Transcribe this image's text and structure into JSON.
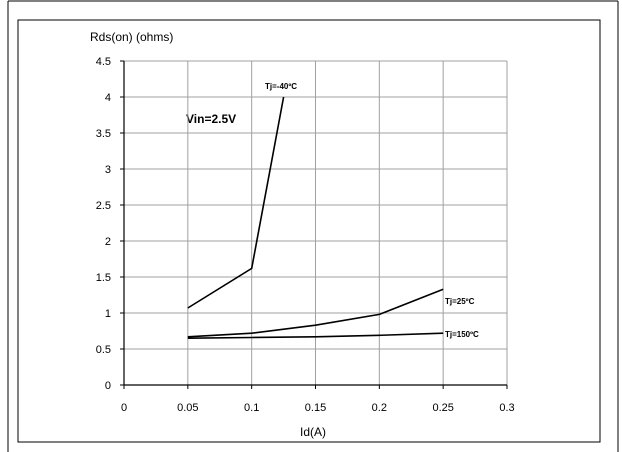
{
  "chart_data": {
    "type": "line",
    "title": "",
    "ylabel": "Rds(on) (ohms)",
    "xlabel": "Id(A)",
    "annotation": "Vin=2.5V",
    "xlim": [
      0,
      0.3
    ],
    "ylim": [
      0,
      4.5
    ],
    "grid": true,
    "x_ticks": [
      "0",
      "0.05",
      "0.1",
      "0.15",
      "0.2",
      "0.25",
      "0.3"
    ],
    "y_ticks": [
      "0",
      "0.5",
      "1",
      "1.5",
      "2",
      "2.5",
      "3",
      "3.5",
      "4",
      "4.5"
    ],
    "series": [
      {
        "name": "Tj=-40ºC",
        "x": [
          0.05,
          0.1,
          0.125
        ],
        "y": [
          1.07,
          1.62,
          4.0
        ]
      },
      {
        "name": "Tj=25ºC",
        "x": [
          0.05,
          0.1,
          0.15,
          0.2,
          0.25
        ],
        "y": [
          0.67,
          0.72,
          0.83,
          0.98,
          1.33
        ]
      },
      {
        "name": "Tj=150ºC",
        "x": [
          0.05,
          0.1,
          0.15,
          0.2,
          0.25
        ],
        "y": [
          0.65,
          0.66,
          0.67,
          0.69,
          0.72
        ]
      }
    ]
  }
}
